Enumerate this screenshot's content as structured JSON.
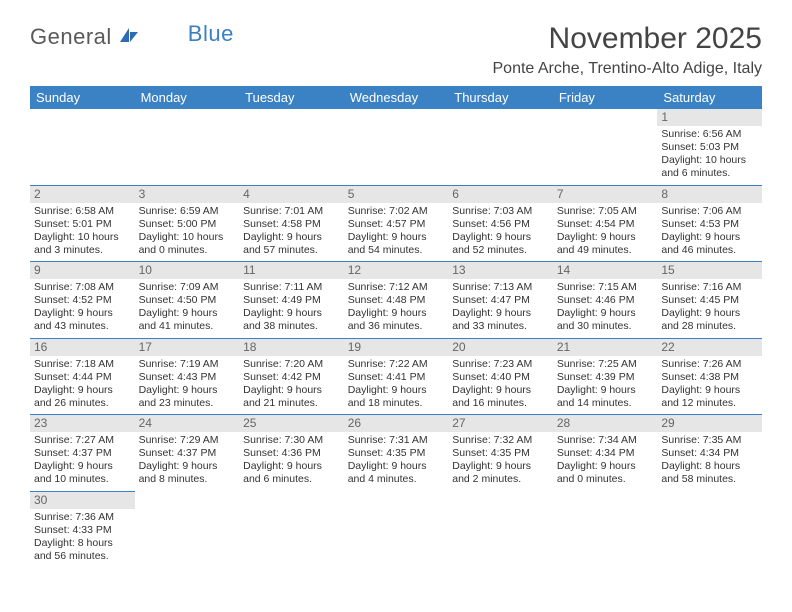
{
  "logo": {
    "general": "General",
    "blue": "Blue"
  },
  "title": "November 2025",
  "location": "Ponte Arche, Trentino-Alto Adige, Italy",
  "day_headers": [
    "Sunday",
    "Monday",
    "Tuesday",
    "Wednesday",
    "Thursday",
    "Friday",
    "Saturday"
  ],
  "colors": {
    "header_bg": "#3b82c4",
    "header_text": "#ffffff",
    "daynum_bg": "#e6e6e6",
    "divider": "#3b82c4"
  },
  "fonts": {
    "title_size": 30,
    "location_size": 16,
    "cell_size": 10.5,
    "header_size": 13
  },
  "weeks": [
    [
      null,
      null,
      null,
      null,
      null,
      null,
      {
        "n": "1",
        "sunrise": "Sunrise: 6:56 AM",
        "sunset": "Sunset: 5:03 PM",
        "dl1": "Daylight: 10 hours",
        "dl2": "and 6 minutes."
      }
    ],
    [
      {
        "n": "2",
        "sunrise": "Sunrise: 6:58 AM",
        "sunset": "Sunset: 5:01 PM",
        "dl1": "Daylight: 10 hours",
        "dl2": "and 3 minutes."
      },
      {
        "n": "3",
        "sunrise": "Sunrise: 6:59 AM",
        "sunset": "Sunset: 5:00 PM",
        "dl1": "Daylight: 10 hours",
        "dl2": "and 0 minutes."
      },
      {
        "n": "4",
        "sunrise": "Sunrise: 7:01 AM",
        "sunset": "Sunset: 4:58 PM",
        "dl1": "Daylight: 9 hours",
        "dl2": "and 57 minutes."
      },
      {
        "n": "5",
        "sunrise": "Sunrise: 7:02 AM",
        "sunset": "Sunset: 4:57 PM",
        "dl1": "Daylight: 9 hours",
        "dl2": "and 54 minutes."
      },
      {
        "n": "6",
        "sunrise": "Sunrise: 7:03 AM",
        "sunset": "Sunset: 4:56 PM",
        "dl1": "Daylight: 9 hours",
        "dl2": "and 52 minutes."
      },
      {
        "n": "7",
        "sunrise": "Sunrise: 7:05 AM",
        "sunset": "Sunset: 4:54 PM",
        "dl1": "Daylight: 9 hours",
        "dl2": "and 49 minutes."
      },
      {
        "n": "8",
        "sunrise": "Sunrise: 7:06 AM",
        "sunset": "Sunset: 4:53 PM",
        "dl1": "Daylight: 9 hours",
        "dl2": "and 46 minutes."
      }
    ],
    [
      {
        "n": "9",
        "sunrise": "Sunrise: 7:08 AM",
        "sunset": "Sunset: 4:52 PM",
        "dl1": "Daylight: 9 hours",
        "dl2": "and 43 minutes."
      },
      {
        "n": "10",
        "sunrise": "Sunrise: 7:09 AM",
        "sunset": "Sunset: 4:50 PM",
        "dl1": "Daylight: 9 hours",
        "dl2": "and 41 minutes."
      },
      {
        "n": "11",
        "sunrise": "Sunrise: 7:11 AM",
        "sunset": "Sunset: 4:49 PM",
        "dl1": "Daylight: 9 hours",
        "dl2": "and 38 minutes."
      },
      {
        "n": "12",
        "sunrise": "Sunrise: 7:12 AM",
        "sunset": "Sunset: 4:48 PM",
        "dl1": "Daylight: 9 hours",
        "dl2": "and 36 minutes."
      },
      {
        "n": "13",
        "sunrise": "Sunrise: 7:13 AM",
        "sunset": "Sunset: 4:47 PM",
        "dl1": "Daylight: 9 hours",
        "dl2": "and 33 minutes."
      },
      {
        "n": "14",
        "sunrise": "Sunrise: 7:15 AM",
        "sunset": "Sunset: 4:46 PM",
        "dl1": "Daylight: 9 hours",
        "dl2": "and 30 minutes."
      },
      {
        "n": "15",
        "sunrise": "Sunrise: 7:16 AM",
        "sunset": "Sunset: 4:45 PM",
        "dl1": "Daylight: 9 hours",
        "dl2": "and 28 minutes."
      }
    ],
    [
      {
        "n": "16",
        "sunrise": "Sunrise: 7:18 AM",
        "sunset": "Sunset: 4:44 PM",
        "dl1": "Daylight: 9 hours",
        "dl2": "and 26 minutes."
      },
      {
        "n": "17",
        "sunrise": "Sunrise: 7:19 AM",
        "sunset": "Sunset: 4:43 PM",
        "dl1": "Daylight: 9 hours",
        "dl2": "and 23 minutes."
      },
      {
        "n": "18",
        "sunrise": "Sunrise: 7:20 AM",
        "sunset": "Sunset: 4:42 PM",
        "dl1": "Daylight: 9 hours",
        "dl2": "and 21 minutes."
      },
      {
        "n": "19",
        "sunrise": "Sunrise: 7:22 AM",
        "sunset": "Sunset: 4:41 PM",
        "dl1": "Daylight: 9 hours",
        "dl2": "and 18 minutes."
      },
      {
        "n": "20",
        "sunrise": "Sunrise: 7:23 AM",
        "sunset": "Sunset: 4:40 PM",
        "dl1": "Daylight: 9 hours",
        "dl2": "and 16 minutes."
      },
      {
        "n": "21",
        "sunrise": "Sunrise: 7:25 AM",
        "sunset": "Sunset: 4:39 PM",
        "dl1": "Daylight: 9 hours",
        "dl2": "and 14 minutes."
      },
      {
        "n": "22",
        "sunrise": "Sunrise: 7:26 AM",
        "sunset": "Sunset: 4:38 PM",
        "dl1": "Daylight: 9 hours",
        "dl2": "and 12 minutes."
      }
    ],
    [
      {
        "n": "23",
        "sunrise": "Sunrise: 7:27 AM",
        "sunset": "Sunset: 4:37 PM",
        "dl1": "Daylight: 9 hours",
        "dl2": "and 10 minutes."
      },
      {
        "n": "24",
        "sunrise": "Sunrise: 7:29 AM",
        "sunset": "Sunset: 4:37 PM",
        "dl1": "Daylight: 9 hours",
        "dl2": "and 8 minutes."
      },
      {
        "n": "25",
        "sunrise": "Sunrise: 7:30 AM",
        "sunset": "Sunset: 4:36 PM",
        "dl1": "Daylight: 9 hours",
        "dl2": "and 6 minutes."
      },
      {
        "n": "26",
        "sunrise": "Sunrise: 7:31 AM",
        "sunset": "Sunset: 4:35 PM",
        "dl1": "Daylight: 9 hours",
        "dl2": "and 4 minutes."
      },
      {
        "n": "27",
        "sunrise": "Sunrise: 7:32 AM",
        "sunset": "Sunset: 4:35 PM",
        "dl1": "Daylight: 9 hours",
        "dl2": "and 2 minutes."
      },
      {
        "n": "28",
        "sunrise": "Sunrise: 7:34 AM",
        "sunset": "Sunset: 4:34 PM",
        "dl1": "Daylight: 9 hours",
        "dl2": "and 0 minutes."
      },
      {
        "n": "29",
        "sunrise": "Sunrise: 7:35 AM",
        "sunset": "Sunset: 4:34 PM",
        "dl1": "Daylight: 8 hours",
        "dl2": "and 58 minutes."
      }
    ],
    [
      {
        "n": "30",
        "sunrise": "Sunrise: 7:36 AM",
        "sunset": "Sunset: 4:33 PM",
        "dl1": "Daylight: 8 hours",
        "dl2": "and 56 minutes."
      },
      null,
      null,
      null,
      null,
      null,
      null
    ]
  ]
}
